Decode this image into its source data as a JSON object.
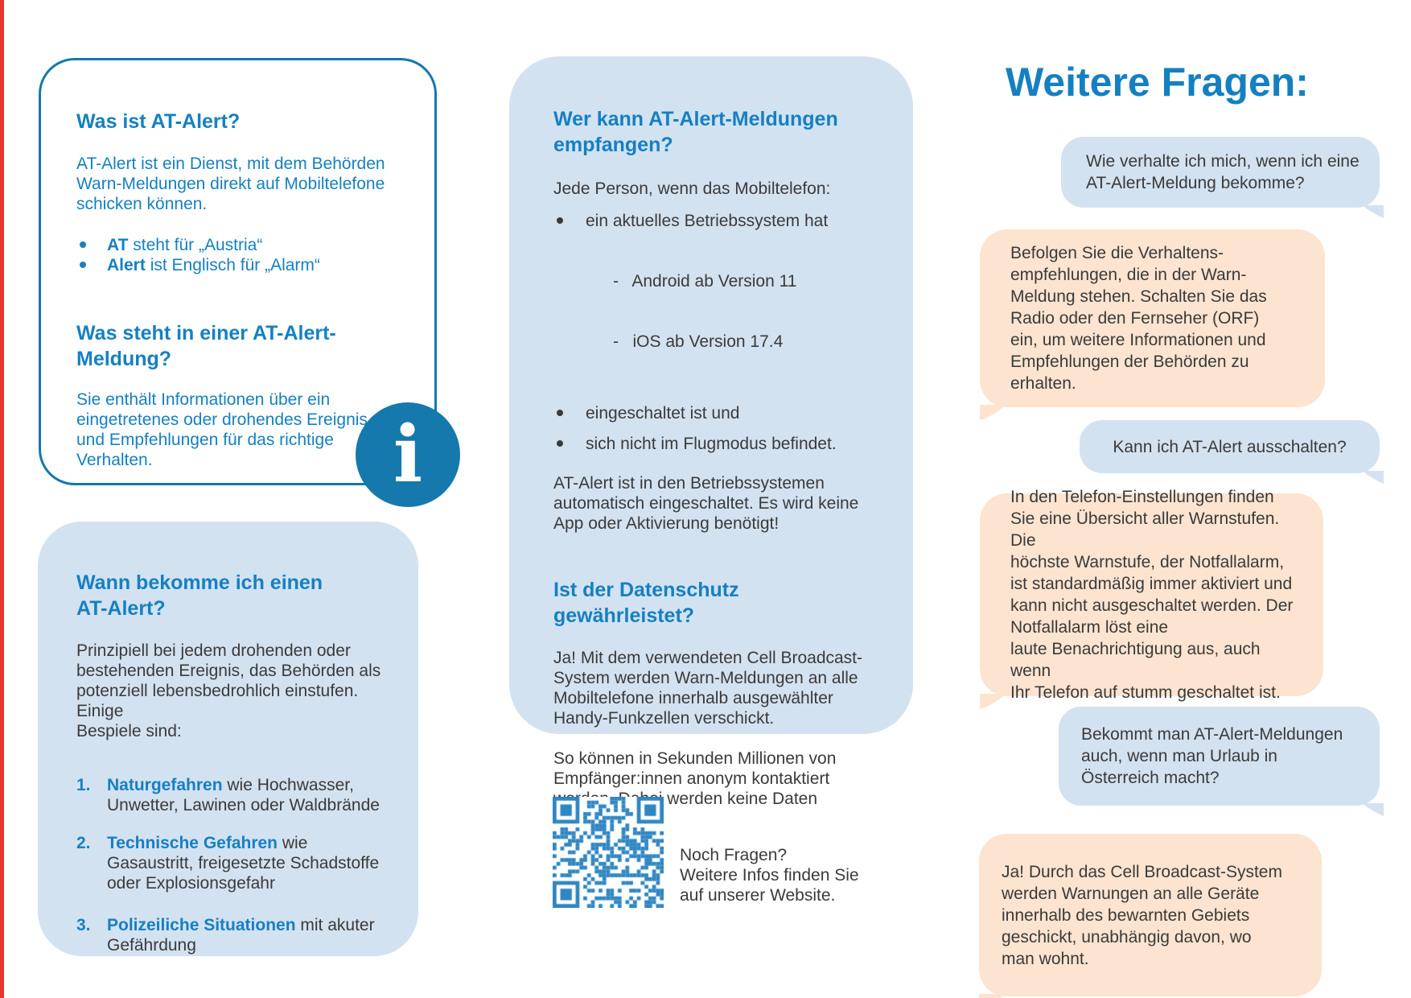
{
  "colors": {
    "brand_blue": "#1580c1",
    "border_blue": "#1478ad",
    "light_blue_fill": "#d3e2f1",
    "orange_fill": "#fce4d0",
    "dark_text": "#3a3a3a",
    "qr_blue": "#2e86c2",
    "bleed_red": "#e8382d"
  },
  "left_box": {
    "s1_title": "Was ist AT-Alert?",
    "s1_body": "AT-Alert ist ein Dienst, mit dem Behörden\nWarn-Meldungen direkt auf Mobiltelefone\nschicken können.",
    "bullets": [
      {
        "strong": "AT",
        "rest": " steht für „Austria“"
      },
      {
        "strong": "Alert",
        "rest": " ist Englisch für „Alarm“"
      }
    ],
    "s2_title": "Was steht in einer AT-Alert-\nMeldung?",
    "s2_body": "Sie enthält Informationen über ein\neingetretenes oder drohendes Ereignis\nund Empfehlungen für das richtige\nVerhalten."
  },
  "info_icon": {
    "glyph": "i"
  },
  "when_box": {
    "title": "Wann bekomme ich einen\nAT-Alert?",
    "body": "Prinzipiell bei jedem drohenden oder\nbestehenden Ereignis, das Behörden als\npotenziell lebensbedrohlich einstufen. Einige\nBespiele sind:",
    "items": [
      {
        "num": "1.",
        "strong": "Naturgefahren",
        "rest": " wie Hochwasser,\nUnwetter, Lawinen oder Waldbrände"
      },
      {
        "num": "2.",
        "strong": "Technische Gefahren",
        "rest": " wie\nGasaustritt, freigesetzte Schadstoffe\noder Explosionsgefahr"
      },
      {
        "num": "3.",
        "strong": "Polizeiliche Situationen",
        "rest": " mit akuter\nGefährdung"
      }
    ]
  },
  "middle_box": {
    "s1_title": "Wer kann AT-Alert-Meldungen\nempfangen?",
    "s1_intro": "Jede Person, wenn das Mobiltelefon:",
    "bullets": [
      {
        "text": "ein aktuelles Betriebssystem hat"
      },
      {
        "text": "eingeschaltet ist und"
      },
      {
        "text": "sich nicht im Flugmodus befindet."
      }
    ],
    "sub_bullets": [
      "-   Android ab Version 11",
      "-   iOS ab Version 17.4"
    ],
    "s1_note": "AT-Alert ist in den Betriebssystemen\nautomatisch eingeschaltet. Es wird keine\nApp oder Aktivierung benötigt!",
    "s2_title": "Ist der Datenschutz\ngewährleistet?",
    "s2_p1": "Ja! Mit dem verwendeten Cell Broadcast-\nSystem werden Warn-Meldungen an alle\nMobiltelefone innerhalb ausgewählter\nHandy-Funkzellen verschickt.",
    "s2_p2": "So können in Sekunden Millionen von\nEmpfänger:innen anonym kontaktiert\nwerden. Dabei werden keine Daten\ngespeichert."
  },
  "qr_block": {
    "icon": "qr-code",
    "caption": "Noch Fragen?\nWeitere Infos finden Sie\nauf unserer Website."
  },
  "faq": {
    "title": "Weitere Fragen:",
    "bubbles": [
      {
        "type": "question",
        "text": "Wie verhalte ich mich, wenn ich eine\nAT-Alert-Meldung bekomme?"
      },
      {
        "type": "answer",
        "text": "Befolgen Sie die Verhaltens-\nempfehlungen, die in der Warn-\nMeldung stehen. Schalten Sie das\nRadio oder den Fernseher (ORF)\nein, um weitere Informationen und\nEmpfehlungen der Behörden zu\nerhalten."
      },
      {
        "type": "question",
        "text": "Kann ich AT-Alert ausschalten?"
      },
      {
        "type": "answer",
        "text": "In den Telefon-Einstellungen finden\nSie eine Übersicht aller Warnstufen. Die\nhöchste Warnstufe, der Notfallalarm,\nist standardmäßig immer aktiviert und\nkann nicht ausgeschaltet werden. Der\nNotfallalarm löst eine\nlaute Benachrichtigung aus, auch wenn\nIhr Telefon auf stumm geschaltet ist."
      },
      {
        "type": "question",
        "text": "Bekommt man AT-Alert-Meldungen\nauch, wenn man Urlaub in\nÖsterreich macht?"
      },
      {
        "type": "answer",
        "text": "Ja! Durch das Cell Broadcast-System\nwerden Warnungen an alle Geräte\ninnerhalb des bewarnten Gebiets\ngeschickt, unabhängig davon, wo\nman wohnt."
      }
    ]
  }
}
